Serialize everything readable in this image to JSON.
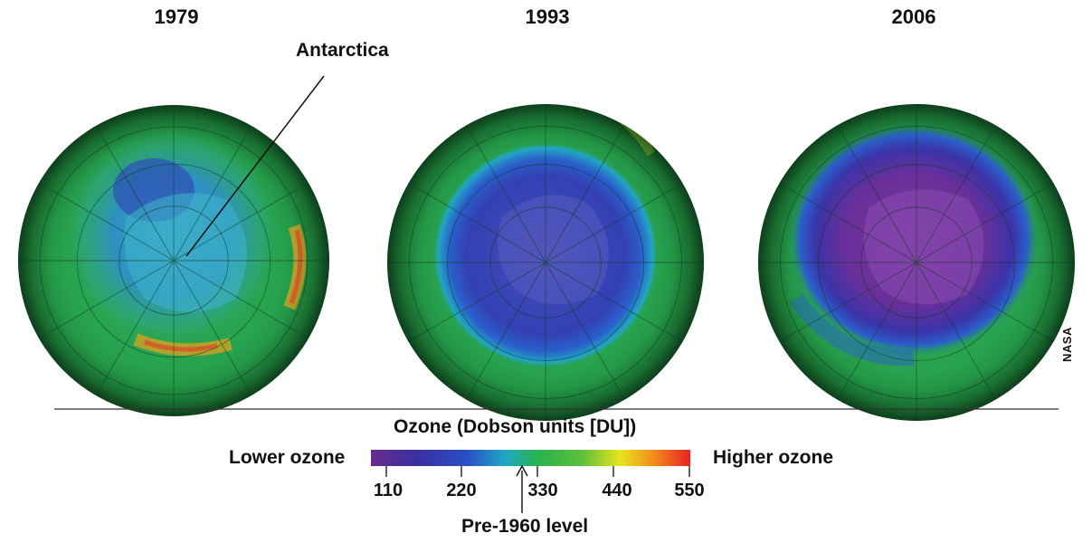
{
  "globes": [
    {
      "year": "1979"
    },
    {
      "year": "1993"
    },
    {
      "year": "2006"
    }
  ],
  "callout": {
    "label": "Antarctica"
  },
  "legend": {
    "title": "Ozone (Dobson units [DU])",
    "low_label": "Lower ozone",
    "high_label": "Higher ozone",
    "ticks": [
      "110",
      "220",
      "330",
      "440",
      "550"
    ],
    "marker_label": "Pre-1960 level",
    "colors": [
      "#6a2b8e",
      "#3b33a8",
      "#2a4fc4",
      "#1ea8c8",
      "#27b34e",
      "#5dbf3b",
      "#e7e51c",
      "#f2901c",
      "#e82324"
    ]
  },
  "credit": "NASA"
}
